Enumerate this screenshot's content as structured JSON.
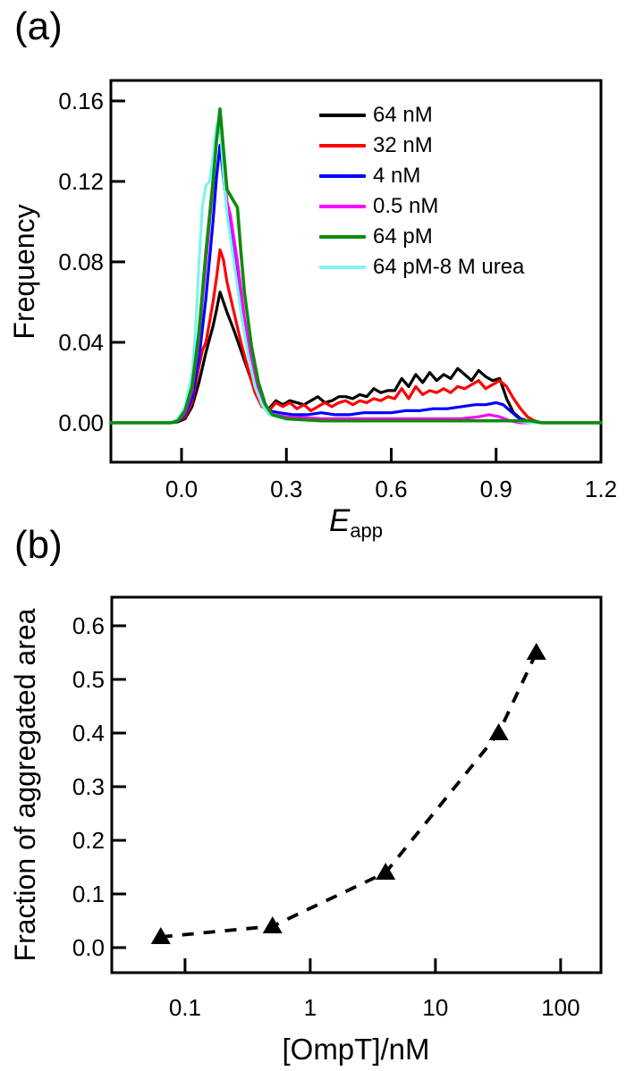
{
  "panel_a": {
    "label": "(a)",
    "chart_data": {
      "type": "line",
      "title": "",
      "xlabel": {
        "main": "E",
        "sub": "app"
      },
      "ylabel": "Frequency",
      "xlim": [
        -0.2021,
        1.2
      ],
      "ylim": [
        -0.0196,
        0.1702
      ],
      "xticks": {
        "values": [
          0.0,
          0.3,
          0.6,
          0.9,
          1.2
        ],
        "labels": [
          "0.0",
          "0.3",
          "0.6",
          "0.9",
          "1.2"
        ]
      },
      "yticks": {
        "values": [
          0.0,
          0.04,
          0.08,
          0.12,
          0.16
        ],
        "labels": [
          "0.00",
          "0.04",
          "0.08",
          "0.12",
          "0.16"
        ]
      },
      "grid": false,
      "legend_position": "upper-right-inside",
      "draw_order": [
        0,
        1,
        2,
        3,
        5,
        4
      ],
      "series": [
        {
          "name": "64 nM",
          "color": "#000000",
          "width": 3.2,
          "points": [
            [
              -0.202,
              0
            ],
            [
              -0.03,
              0
            ],
            [
              -0.01,
              0.0005
            ],
            [
              0.01,
              0.002
            ],
            [
              0.03,
              0.008
            ],
            [
              0.05,
              0.02
            ],
            [
              0.07,
              0.035
            ],
            [
              0.09,
              0.048
            ],
            [
              0.1,
              0.056
            ],
            [
              0.11,
              0.065
            ],
            [
              0.12,
              0.06
            ],
            [
              0.13,
              0.055
            ],
            [
              0.15,
              0.046
            ],
            [
              0.17,
              0.036
            ],
            [
              0.19,
              0.026
            ],
            [
              0.21,
              0.016
            ],
            [
              0.23,
              0.009
            ],
            [
              0.25,
              0.007
            ],
            [
              0.27,
              0.011
            ],
            [
              0.29,
              0.009
            ],
            [
              0.31,
              0.011
            ],
            [
              0.33,
              0.01
            ],
            [
              0.35,
              0.009
            ],
            [
              0.37,
              0.011
            ],
            [
              0.39,
              0.013
            ],
            [
              0.41,
              0.01
            ],
            [
              0.43,
              0.011
            ],
            [
              0.45,
              0.013
            ],
            [
              0.47,
              0.013
            ],
            [
              0.49,
              0.012
            ],
            [
              0.51,
              0.014
            ],
            [
              0.53,
              0.013
            ],
            [
              0.55,
              0.017
            ],
            [
              0.57,
              0.015
            ],
            [
              0.59,
              0.016
            ],
            [
              0.61,
              0.016
            ],
            [
              0.63,
              0.022
            ],
            [
              0.65,
              0.018
            ],
            [
              0.67,
              0.024
            ],
            [
              0.69,
              0.02
            ],
            [
              0.71,
              0.025
            ],
            [
              0.73,
              0.021
            ],
            [
              0.75,
              0.024
            ],
            [
              0.77,
              0.022
            ],
            [
              0.79,
              0.027
            ],
            [
              0.81,
              0.024
            ],
            [
              0.83,
              0.021
            ],
            [
              0.85,
              0.026
            ],
            [
              0.87,
              0.023
            ],
            [
              0.89,
              0.021
            ],
            [
              0.91,
              0.022
            ],
            [
              0.93,
              0.012
            ],
            [
              0.95,
              0.005
            ],
            [
              0.97,
              0.002
            ],
            [
              0.99,
              0.001
            ],
            [
              1.01,
              0
            ],
            [
              1.2,
              0
            ]
          ]
        },
        {
          "name": "32 nM",
          "color": "#ff0000",
          "width": 3.2,
          "points": [
            [
              -0.202,
              0
            ],
            [
              -0.03,
              0
            ],
            [
              -0.01,
              0.001
            ],
            [
              0.01,
              0.003
            ],
            [
              0.03,
              0.01
            ],
            [
              0.05,
              0.028
            ],
            [
              0.06,
              0.036
            ],
            [
              0.07,
              0.04
            ],
            [
              0.08,
              0.05
            ],
            [
              0.09,
              0.06
            ],
            [
              0.1,
              0.072
            ],
            [
              0.11,
              0.086
            ],
            [
              0.12,
              0.081
            ],
            [
              0.13,
              0.07
            ],
            [
              0.15,
              0.055
            ],
            [
              0.17,
              0.04
            ],
            [
              0.19,
              0.027
            ],
            [
              0.21,
              0.015
            ],
            [
              0.23,
              0.008
            ],
            [
              0.25,
              0.006
            ],
            [
              0.27,
              0.01
            ],
            [
              0.29,
              0.008
            ],
            [
              0.31,
              0.01
            ],
            [
              0.33,
              0.007
            ],
            [
              0.35,
              0.009
            ],
            [
              0.37,
              0.006
            ],
            [
              0.39,
              0.008
            ],
            [
              0.41,
              0.01
            ],
            [
              0.43,
              0.008
            ],
            [
              0.45,
              0.01
            ],
            [
              0.47,
              0.011
            ],
            [
              0.49,
              0.009
            ],
            [
              0.51,
              0.011
            ],
            [
              0.53,
              0.01
            ],
            [
              0.55,
              0.012
            ],
            [
              0.57,
              0.011
            ],
            [
              0.59,
              0.013
            ],
            [
              0.61,
              0.012
            ],
            [
              0.63,
              0.017
            ],
            [
              0.65,
              0.012
            ],
            [
              0.67,
              0.018
            ],
            [
              0.69,
              0.014
            ],
            [
              0.71,
              0.016
            ],
            [
              0.73,
              0.015
            ],
            [
              0.75,
              0.017
            ],
            [
              0.77,
              0.015
            ],
            [
              0.79,
              0.018
            ],
            [
              0.81,
              0.017
            ],
            [
              0.83,
              0.019
            ],
            [
              0.85,
              0.021
            ],
            [
              0.87,
              0.017
            ],
            [
              0.89,
              0.019
            ],
            [
              0.91,
              0.021
            ],
            [
              0.93,
              0.018
            ],
            [
              0.95,
              0.012
            ],
            [
              0.97,
              0.007
            ],
            [
              0.99,
              0.003
            ],
            [
              1.01,
              0.001
            ],
            [
              1.03,
              0
            ],
            [
              1.2,
              0
            ]
          ]
        },
        {
          "name": "4 nM",
          "color": "#0000ff",
          "width": 3.2,
          "points": [
            [
              -0.202,
              0
            ],
            [
              -0.03,
              0
            ],
            [
              -0.01,
              0.001
            ],
            [
              0.01,
              0.004
            ],
            [
              0.03,
              0.012
            ],
            [
              0.05,
              0.032
            ],
            [
              0.07,
              0.062
            ],
            [
              0.09,
              0.1
            ],
            [
              0.1,
              0.122
            ],
            [
              0.11,
              0.138
            ],
            [
              0.12,
              0.122
            ],
            [
              0.13,
              0.106
            ],
            [
              0.15,
              0.082
            ],
            [
              0.17,
              0.058
            ],
            [
              0.19,
              0.038
            ],
            [
              0.21,
              0.022
            ],
            [
              0.23,
              0.011
            ],
            [
              0.25,
              0.006
            ],
            [
              0.28,
              0.005
            ],
            [
              0.32,
              0.004
            ],
            [
              0.36,
              0.004
            ],
            [
              0.4,
              0.005
            ],
            [
              0.44,
              0.004
            ],
            [
              0.48,
              0.004
            ],
            [
              0.52,
              0.005
            ],
            [
              0.56,
              0.005
            ],
            [
              0.6,
              0.005
            ],
            [
              0.64,
              0.006
            ],
            [
              0.68,
              0.006
            ],
            [
              0.72,
              0.007
            ],
            [
              0.76,
              0.007
            ],
            [
              0.8,
              0.008
            ],
            [
              0.84,
              0.009
            ],
            [
              0.87,
              0.009
            ],
            [
              0.9,
              0.01
            ],
            [
              0.92,
              0.009
            ],
            [
              0.94,
              0.006
            ],
            [
              0.96,
              0.003
            ],
            [
              0.98,
              0.001
            ],
            [
              1.0,
              0
            ],
            [
              1.2,
              0
            ]
          ]
        },
        {
          "name": "0.5 nM",
          "color": "#ff00ff",
          "width": 3.2,
          "points": [
            [
              -0.202,
              0
            ],
            [
              -0.03,
              0
            ],
            [
              -0.01,
              0.001
            ],
            [
              0.01,
              0.005
            ],
            [
              0.03,
              0.016
            ],
            [
              0.05,
              0.042
            ],
            [
              0.07,
              0.08
            ],
            [
              0.09,
              0.118
            ],
            [
              0.1,
              0.145
            ],
            [
              0.11,
              0.148
            ],
            [
              0.12,
              0.126
            ],
            [
              0.13,
              0.11
            ],
            [
              0.14,
              0.103
            ],
            [
              0.16,
              0.08
            ],
            [
              0.18,
              0.052
            ],
            [
              0.2,
              0.03
            ],
            [
              0.22,
              0.015
            ],
            [
              0.24,
              0.007
            ],
            [
              0.26,
              0.004
            ],
            [
              0.3,
              0.003
            ],
            [
              0.4,
              0.002
            ],
            [
              0.5,
              0.002
            ],
            [
              0.6,
              0.002
            ],
            [
              0.7,
              0.002
            ],
            [
              0.8,
              0.002
            ],
            [
              0.85,
              0.003
            ],
            [
              0.88,
              0.004
            ],
            [
              0.91,
              0.003
            ],
            [
              0.94,
              0.001
            ],
            [
              0.97,
              0
            ],
            [
              1.2,
              0
            ]
          ]
        },
        {
          "name": "64 pM",
          "color": "#0d8c0d",
          "width": 3.6,
          "points": [
            [
              -0.202,
              0
            ],
            [
              -0.03,
              0
            ],
            [
              -0.01,
              0.001
            ],
            [
              0.01,
              0.006
            ],
            [
              0.03,
              0.018
            ],
            [
              0.05,
              0.045
            ],
            [
              0.07,
              0.085
            ],
            [
              0.09,
              0.12
            ],
            [
              0.1,
              0.14
            ],
            [
              0.11,
              0.156
            ],
            [
              0.12,
              0.136
            ],
            [
              0.13,
              0.116
            ],
            [
              0.14,
              0.113
            ],
            [
              0.16,
              0.107
            ],
            [
              0.17,
              0.085
            ],
            [
              0.18,
              0.065
            ],
            [
              0.2,
              0.038
            ],
            [
              0.22,
              0.02
            ],
            [
              0.24,
              0.009
            ],
            [
              0.26,
              0.004
            ],
            [
              0.3,
              0.002
            ],
            [
              0.4,
              0.001
            ],
            [
              0.6,
              0.001
            ],
            [
              0.8,
              0.001
            ],
            [
              1.0,
              0.001
            ],
            [
              1.03,
              0
            ],
            [
              1.2,
              0
            ]
          ]
        },
        {
          "name": "64 pM-8 M urea",
          "color": "#7ef4ec",
          "width": 3.2,
          "points": [
            [
              -0.202,
              0
            ],
            [
              -0.03,
              0
            ],
            [
              -0.01,
              0.002
            ],
            [
              0.01,
              0.008
            ],
            [
              0.03,
              0.024
            ],
            [
              0.04,
              0.045
            ],
            [
              0.05,
              0.08
            ],
            [
              0.06,
              0.108
            ],
            [
              0.07,
              0.118
            ],
            [
              0.08,
              0.12
            ],
            [
              0.09,
              0.132
            ],
            [
              0.1,
              0.148
            ],
            [
              0.11,
              0.15
            ],
            [
              0.12,
              0.124
            ],
            [
              0.13,
              0.104
            ],
            [
              0.15,
              0.08
            ],
            [
              0.17,
              0.055
            ],
            [
              0.19,
              0.034
            ],
            [
              0.21,
              0.018
            ],
            [
              0.23,
              0.009
            ],
            [
              0.25,
              0.004
            ],
            [
              0.3,
              0.002
            ],
            [
              0.4,
              0.001
            ],
            [
              0.6,
              0.001
            ],
            [
              0.8,
              0.001
            ],
            [
              0.95,
              0.001
            ],
            [
              1.0,
              0
            ],
            [
              1.2,
              0
            ]
          ]
        }
      ]
    }
  },
  "panel_b": {
    "label": "(b)",
    "chart_data": {
      "type": "scatter",
      "title": "",
      "xlabel": "[OmpT]/nM",
      "ylabel": "Fraction of aggregated area",
      "x_scale": "log",
      "xlim": [
        0.026,
        210
      ],
      "ylim": [
        -0.0467,
        0.6533
      ],
      "xticks": {
        "values": [
          0.1,
          1,
          10,
          100
        ],
        "labels": [
          "0.1",
          "1",
          "10",
          "100"
        ]
      },
      "yticks": {
        "values": [
          0.0,
          0.1,
          0.2,
          0.3,
          0.4,
          0.5,
          0.6
        ],
        "labels": [
          "0.0",
          "0.1",
          "0.2",
          "0.3",
          "0.4",
          "0.5",
          "0.6"
        ]
      },
      "grid": false,
      "marker": "triangle-up",
      "line_style": "dashed",
      "color": "#000000",
      "series": [
        {
          "name": "fraction of aggregated area",
          "points": [
            [
              0.064,
              0.02
            ],
            [
              0.5,
              0.04
            ],
            [
              4,
              0.14
            ],
            [
              32,
              0.4
            ],
            [
              64,
              0.55
            ]
          ]
        }
      ]
    }
  }
}
